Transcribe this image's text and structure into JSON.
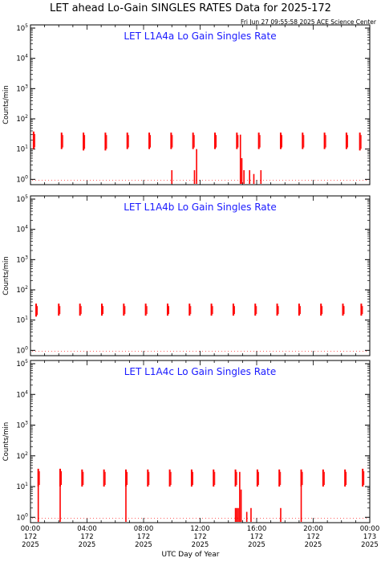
{
  "header": {
    "title": "LET ahead Lo-Gain SINGLES RATES Data for 2025-172",
    "timestamp": "Fri Jun 27 09:55:58 2025 ACE Science Center"
  },
  "chart_data": [
    {
      "type": "scatter",
      "title": "LET L1A4a Lo Gain Singles Rate",
      "ylabel": "Counts/min",
      "yscale": "log",
      "ylim": [
        0.8,
        100000
      ],
      "xlim": [
        0,
        24
      ],
      "color": "#ff0000",
      "spikes": [
        {
          "x": 0.22,
          "low": 10,
          "high": 38
        },
        {
          "x": 2.2,
          "low": 10,
          "high": 35
        },
        {
          "x": 3.75,
          "low": 9,
          "high": 35
        },
        {
          "x": 5.3,
          "low": 9,
          "high": 35
        },
        {
          "x": 6.85,
          "low": 10,
          "high": 35
        },
        {
          "x": 8.4,
          "low": 10,
          "high": 35
        },
        {
          "x": 9.95,
          "low": 10,
          "high": 35
        },
        {
          "x": 11.5,
          "low": 10,
          "high": 35
        },
        {
          "x": 13.05,
          "low": 10,
          "high": 35
        },
        {
          "x": 14.6,
          "low": 10,
          "high": 35
        },
        {
          "x": 16.15,
          "low": 10,
          "high": 35
        },
        {
          "x": 17.7,
          "low": 10,
          "high": 35
        },
        {
          "x": 19.25,
          "low": 10,
          "high": 35
        },
        {
          "x": 20.8,
          "low": 10,
          "high": 35
        },
        {
          "x": 22.35,
          "low": 10,
          "high": 35
        },
        {
          "x": 23.3,
          "low": 9,
          "high": 35
        }
      ],
      "bars": [
        {
          "x": 10.0,
          "value": 2
        },
        {
          "x": 11.6,
          "value": 2
        },
        {
          "x": 11.75,
          "value": 10
        },
        {
          "x": 14.85,
          "value": 30
        },
        {
          "x": 14.95,
          "value": 5
        },
        {
          "x": 15.1,
          "value": 2
        },
        {
          "x": 15.5,
          "value": 2
        },
        {
          "x": 16.3,
          "value": 2
        },
        {
          "x": 15.8,
          "value": 1.5
        }
      ]
    },
    {
      "type": "scatter",
      "title": "LET L1A4b Lo Gain Singles Rate",
      "ylabel": "Counts/min",
      "yscale": "log",
      "ylim": [
        0.8,
        100000
      ],
      "xlim": [
        0,
        24
      ],
      "color": "#ff0000",
      "spikes": [
        {
          "x": 0.4,
          "low": 13,
          "high": 35
        },
        {
          "x": 2.0,
          "low": 14,
          "high": 35
        },
        {
          "x": 3.5,
          "low": 14,
          "high": 35
        },
        {
          "x": 5.05,
          "low": 14,
          "high": 35
        },
        {
          "x": 6.6,
          "low": 14,
          "high": 35
        },
        {
          "x": 8.15,
          "low": 14,
          "high": 35
        },
        {
          "x": 9.7,
          "low": 14,
          "high": 35
        },
        {
          "x": 11.25,
          "low": 14,
          "high": 35
        },
        {
          "x": 12.8,
          "low": 14,
          "high": 35
        },
        {
          "x": 14.35,
          "low": 14,
          "high": 35
        },
        {
          "x": 15.9,
          "low": 14,
          "high": 35
        },
        {
          "x": 17.45,
          "low": 14,
          "high": 35
        },
        {
          "x": 19.0,
          "low": 14,
          "high": 35
        },
        {
          "x": 20.55,
          "low": 14,
          "high": 35
        },
        {
          "x": 22.1,
          "low": 14,
          "high": 35
        },
        {
          "x": 23.4,
          "low": 14,
          "high": 35
        }
      ],
      "bars": []
    },
    {
      "type": "scatter",
      "title": "LET L1A4c Lo Gain Singles Rate",
      "ylabel": "Counts/min",
      "yscale": "log",
      "ylim": [
        0.8,
        100000
      ],
      "xlim": [
        0,
        24
      ],
      "color": "#ff0000",
      "spikes": [
        {
          "x": 0.55,
          "low": 10,
          "high": 38
        },
        {
          "x": 2.1,
          "low": 10,
          "high": 38
        },
        {
          "x": 3.65,
          "low": 10,
          "high": 36
        },
        {
          "x": 5.2,
          "low": 10,
          "high": 36
        },
        {
          "x": 6.75,
          "low": 10,
          "high": 36
        },
        {
          "x": 8.3,
          "low": 10,
          "high": 36
        },
        {
          "x": 9.85,
          "low": 10,
          "high": 36
        },
        {
          "x": 11.4,
          "low": 10,
          "high": 36
        },
        {
          "x": 12.95,
          "low": 10,
          "high": 36
        },
        {
          "x": 14.5,
          "low": 10,
          "high": 36
        },
        {
          "x": 16.05,
          "low": 10,
          "high": 36
        },
        {
          "x": 17.6,
          "low": 10,
          "high": 36
        },
        {
          "x": 19.15,
          "low": 10,
          "high": 36
        },
        {
          "x": 20.7,
          "low": 10,
          "high": 36
        },
        {
          "x": 22.25,
          "low": 10,
          "high": 36
        },
        {
          "x": 23.5,
          "low": 10,
          "high": 38
        }
      ],
      "bars": [
        {
          "x": 0.55,
          "value": 10
        },
        {
          "x": 2.1,
          "value": 10
        },
        {
          "x": 6.75,
          "value": 10
        },
        {
          "x": 14.5,
          "value": 2
        },
        {
          "x": 14.6,
          "value": 2
        },
        {
          "x": 14.7,
          "value": 2
        },
        {
          "x": 14.8,
          "value": 30
        },
        {
          "x": 14.9,
          "value": 8
        },
        {
          "x": 15.3,
          "value": 1.5
        },
        {
          "x": 15.6,
          "value": 2
        },
        {
          "x": 17.7,
          "value": 2
        },
        {
          "x": 19.15,
          "value": 10
        }
      ]
    }
  ],
  "y_tick_labels": [
    {
      "base": "10",
      "exp": "0"
    },
    {
      "base": "10",
      "exp": "1"
    },
    {
      "base": "10",
      "exp": "2"
    },
    {
      "base": "10",
      "exp": "3"
    },
    {
      "base": "10",
      "exp": "4"
    },
    {
      "base": "10",
      "exp": "5"
    }
  ],
  "x_ticks": [
    {
      "time": "00:00",
      "day": "172",
      "year": "2025"
    },
    {
      "time": "04:00",
      "day": "172",
      "year": "2025"
    },
    {
      "time": "08:00",
      "day": "172",
      "year": "2025"
    },
    {
      "time": "12:00",
      "day": "172",
      "year": "2025"
    },
    {
      "time": "16:00",
      "day": "172",
      "year": "2025"
    },
    {
      "time": "20:00",
      "day": "172",
      "year": "2025"
    },
    {
      "time": "00:00",
      "day": "173",
      "year": "2025"
    }
  ],
  "xlabel": "UTC Day of Year"
}
